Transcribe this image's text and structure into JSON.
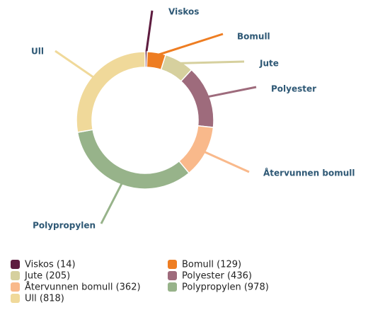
{
  "chart_data": {
    "type": "donut",
    "categories": [
      "Viskos",
      "Bomull",
      "Jute",
      "Polyester",
      "Återvunnen bomull",
      "Polypropylen",
      "Ull"
    ],
    "values": [
      14,
      129,
      205,
      436,
      362,
      978,
      818
    ],
    "legend_labels": [
      "Viskos (14)",
      "Bomull (129)",
      "Jute (205)",
      "Polyester (436)",
      "Återvunnen bomull (362)",
      "Polypropylen (978)",
      "Ull (818)"
    ],
    "colors": [
      "#5e1c3f",
      "#ee7d22",
      "#d6d09e",
      "#9e6b7c",
      "#f9b98b",
      "#97b38a",
      "#f0d99a"
    ]
  }
}
